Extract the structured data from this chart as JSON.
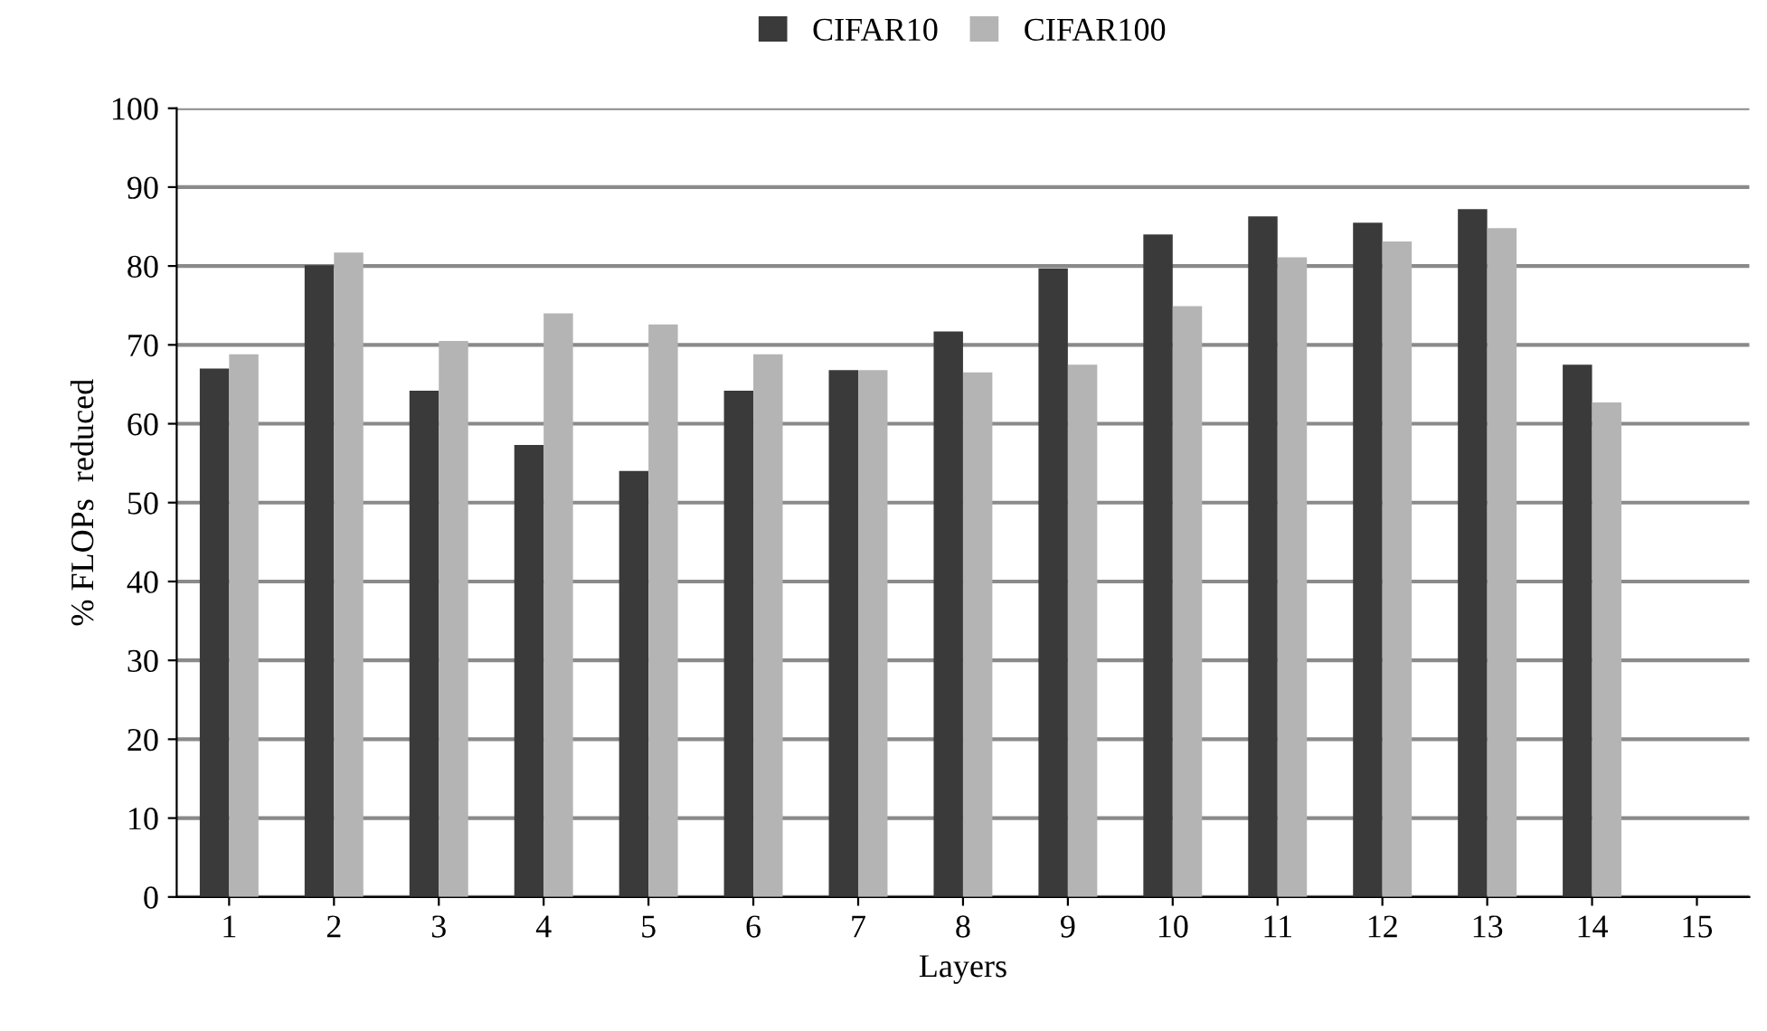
{
  "chart_data": {
    "type": "bar",
    "xlabel": "Layers",
    "ylabel": "% FLOPs  reduced",
    "categories": [
      "1",
      "2",
      "3",
      "4",
      "5",
      "6",
      "7",
      "8",
      "9",
      "10",
      "11",
      "12",
      "13",
      "14",
      "15"
    ],
    "series": [
      {
        "name": "CIFAR10",
        "color": "#3a3a3a",
        "values": [
          67.0,
          80.1,
          64.2,
          57.3,
          54.0,
          64.2,
          66.8,
          71.7,
          79.7,
          84.0,
          86.3,
          85.5,
          87.2,
          67.5,
          null
        ]
      },
      {
        "name": "CIFAR100",
        "color": "#b4b4b4",
        "values": [
          68.8,
          81.7,
          70.5,
          74.0,
          72.6,
          68.8,
          66.8,
          66.5,
          67.5,
          74.9,
          81.1,
          83.1,
          84.8,
          62.7,
          null
        ]
      }
    ],
    "ylim": [
      0,
      100
    ],
    "yticks": [
      0,
      10,
      20,
      30,
      40,
      50,
      60,
      70,
      80,
      90,
      100
    ],
    "grid": "y",
    "legend": "top"
  }
}
